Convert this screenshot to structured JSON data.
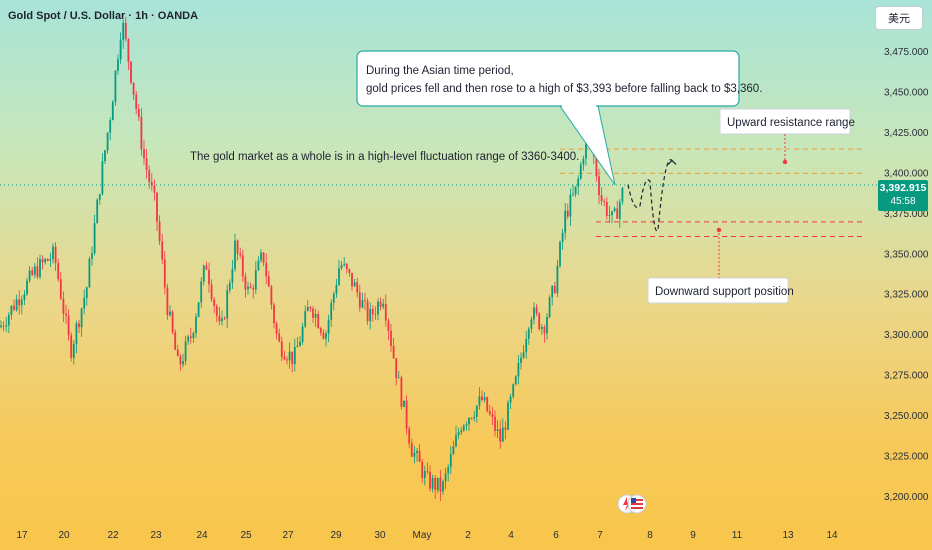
{
  "chart_data": {
    "type": "candlestick",
    "title": "Gold Spot / U.S. Dollar · 1h · OANDA",
    "currency_label": "美元",
    "ylim": [
      3195,
      3500
    ],
    "yticks": [
      "3,475.000",
      "3,450.000",
      "3,425.000",
      "3,400.000",
      "3,375.000",
      "3,350.000",
      "3,325.000",
      "3,300.000",
      "3,275.000",
      "3,250.000",
      "3,225.000",
      "3,200.000"
    ],
    "ytick_values": [
      3475,
      3450,
      3425,
      3400,
      3375,
      3350,
      3325,
      3300,
      3275,
      3250,
      3225,
      3200
    ],
    "xticks": [
      "17",
      "20",
      "22",
      "23",
      "24",
      "25",
      "27",
      "29",
      "30",
      "May",
      "2",
      "4",
      "6",
      "7",
      "8",
      "9",
      "11",
      "13",
      "14"
    ],
    "current_price": "3,392.915",
    "countdown": "45:58",
    "price_path": [
      [
        3305,
        "17"
      ],
      [
        3340,
        "17"
      ],
      [
        3350,
        "20"
      ],
      [
        3290,
        "20"
      ],
      [
        3330,
        "20"
      ],
      [
        3395,
        "22"
      ],
      [
        3440,
        "22"
      ],
      [
        3495,
        "22"
      ],
      [
        3455,
        "22"
      ],
      [
        3410,
        "23"
      ],
      [
        3380,
        "23"
      ],
      [
        3320,
        "23"
      ],
      [
        3280,
        "23"
      ],
      [
        3300,
        "24"
      ],
      [
        3345,
        "24"
      ],
      [
        3300,
        "24"
      ],
      [
        3355,
        "25"
      ],
      [
        3325,
        "25"
      ],
      [
        3350,
        "25"
      ],
      [
        3295,
        "27"
      ],
      [
        3285,
        "27"
      ],
      [
        3320,
        "27"
      ],
      [
        3300,
        "29"
      ],
      [
        3345,
        "29"
      ],
      [
        3330,
        "29"
      ],
      [
        3310,
        "30"
      ],
      [
        3325,
        "30"
      ],
      [
        3275,
        "30"
      ],
      [
        3230,
        "May"
      ],
      [
        3210,
        "May"
      ],
      [
        3205,
        "May"
      ],
      [
        3245,
        "2"
      ],
      [
        3260,
        "2"
      ],
      [
        3235,
        "4"
      ],
      [
        3270,
        "4"
      ],
      [
        3315,
        "4"
      ],
      [
        3305,
        "6"
      ],
      [
        3330,
        "6"
      ],
      [
        3375,
        "6"
      ],
      [
        3390,
        "6"
      ],
      [
        3430,
        "7"
      ],
      [
        3385,
        "7"
      ],
      [
        3370,
        "7"
      ],
      [
        3393,
        "7"
      ]
    ],
    "projection": [
      3393,
      3380,
      3395,
      3365,
      3408
    ]
  },
  "annotations": {
    "asian_line1": "During the Asian time period,",
    "asian_line2": "gold prices fell and then rose to a high of $3,393 before falling back to $3,360.",
    "range_text": "The gold market as a whole is in a high-level fluctuation range of 3360-3400.",
    "resistance": "Upward resistance range",
    "support": "Downward support position"
  },
  "levels": {
    "resistance_top": 3415,
    "resistance_bottom": 3400,
    "support_top": 3370,
    "support_bottom": 3361
  },
  "colors": {
    "up": "#089981",
    "down": "#f23645",
    "level": "#f23645",
    "price_tag": "#089981"
  }
}
